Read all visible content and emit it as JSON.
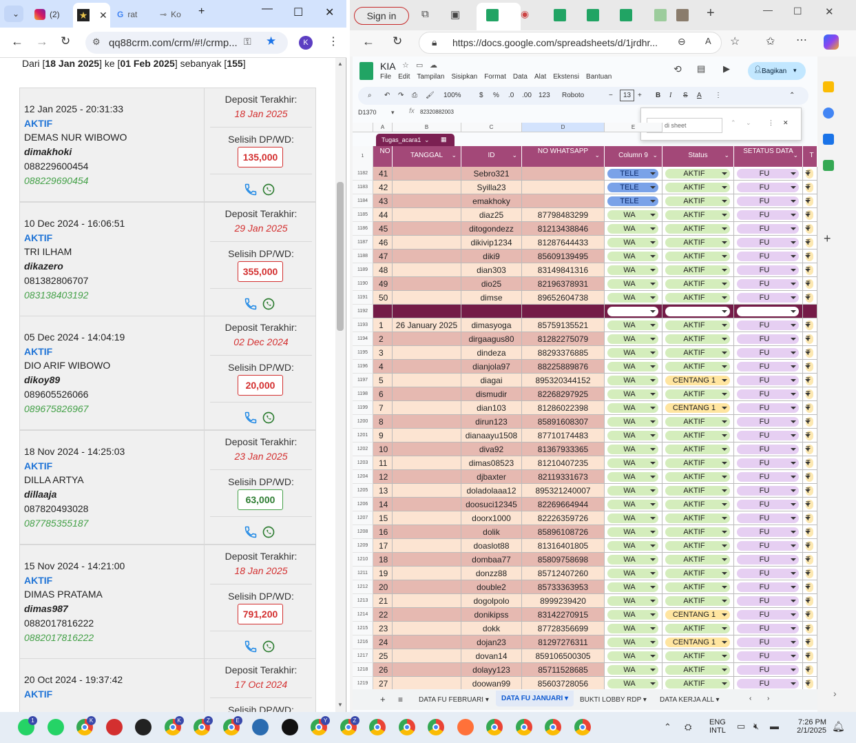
{
  "left_browser": {
    "tabs": [
      {
        "label": "(2)",
        "icon": "instagram-icon"
      },
      {
        "label": "",
        "icon": "star-logo-icon"
      },
      {
        "label": "rat",
        "icon": "google-icon"
      },
      {
        "label": "Ko",
        "icon": "page-icon"
      }
    ],
    "url": "qq88crm.com/crm/#!/crmp...",
    "profile": "K",
    "summary": {
      "prefix": "Dari [",
      "from": "18 Jan 2025",
      "mid1": "] ke [",
      "to": "01 Feb 2025",
      "mid2": "] sebanyak [",
      "count": "155",
      "suffix": "]"
    },
    "labels": {
      "deposit": "Deposit Terakhir:",
      "selisih": "Selisih DP/WD:"
    },
    "cards": [
      {
        "date": "12 Jan 2025 - 20:31:33",
        "status": "AKTIF",
        "name": "DEMAS NUR WIBOWO",
        "user": "dimakhoki",
        "phone": "088229600454",
        "phone2": "088229690454",
        "deposit": "18 Jan 2025",
        "selisih": "135,000",
        "color": "red"
      },
      {
        "date": "10 Dec 2024 - 16:06:51",
        "status": "AKTIF",
        "name": "TRI ILHAM",
        "user": "dikazero",
        "phone": "081382806707",
        "phone2": "083138403192",
        "deposit": "29 Jan 2025",
        "selisih": "355,000",
        "color": "red"
      },
      {
        "date": "05 Dec 2024 - 14:04:19",
        "status": "AKTIF",
        "name": "DIO ARIF WIBOWO",
        "user": "dikoy89",
        "phone": "089605526066",
        "phone2": "089675826967",
        "deposit": "02 Dec 2024",
        "selisih": "20,000",
        "color": "red"
      },
      {
        "date": "18 Nov 2024 - 14:25:03",
        "status": "AKTIF",
        "name": "DILLA ARTYA",
        "user": "dillaaja",
        "phone": "087820493028",
        "phone2": "087785355187",
        "deposit": "23 Jan 2025",
        "selisih": "63,000",
        "color": "green"
      },
      {
        "date": "15 Nov 2024 - 14:21:00",
        "status": "AKTIF",
        "name": "DIMAS PRATAMA",
        "user": "dimas987",
        "phone": "0882017816222",
        "phone2": "0882017816222",
        "deposit": "18 Jan 2025",
        "selisih": "791,200",
        "color": "red"
      },
      {
        "date": "20 Oct 2024 - 19:37:42",
        "status": "AKTIF",
        "name": "",
        "user": "",
        "phone": "",
        "phone2": "",
        "deposit": "17 Oct 2024",
        "selisih": "",
        "color": "red"
      }
    ]
  },
  "right_browser": {
    "signin": "Sign in",
    "url": "https://docs.google.com/spreadsheets/d/1jrdhr...",
    "profile": "K",
    "doc_name": "KIA",
    "menus": [
      "File",
      "Edit",
      "Tampilan",
      "Sisipkan",
      "Format",
      "Data",
      "Alat",
      "Ekstensi",
      "Bantuan"
    ],
    "share": "Bagikan",
    "toolbar": {
      "zoom": "100%",
      "currency": "$",
      "percent": "%",
      "dec1": ".0",
      "dec2": ".00",
      "fmt": "123",
      "font": "Roboto",
      "size": "13"
    },
    "name_box": "D1370",
    "formula": "82320882003",
    "find_placeholder": "Cari di sheet",
    "col_letters": [
      "A",
      "B",
      "C",
      "D",
      "E"
    ],
    "filter_name": "Tugas_acara1",
    "headers": [
      "NO",
      "TANGGAL",
      "ID",
      "NO WHATSAPP",
      "Column 9",
      "Status",
      "SETATUS DATA",
      "T"
    ],
    "rows": [
      {
        "rn": "1182",
        "no": "41",
        "tgl": "",
        "id": "Sebro321",
        "wa": "",
        "col9": "TELE",
        "status": "AKTIF",
        "data": "FU",
        "t": "T"
      },
      {
        "rn": "1183",
        "no": "42",
        "tgl": "",
        "id": "Syilla23",
        "wa": "",
        "col9": "TELE",
        "status": "AKTIF",
        "data": "FU",
        "t": "T"
      },
      {
        "rn": "1184",
        "no": "43",
        "tgl": "",
        "id": "emakhoky",
        "wa": "",
        "col9": "TELE",
        "status": "AKTIF",
        "data": "FU",
        "t": "T"
      },
      {
        "rn": "1185",
        "no": "44",
        "tgl": "",
        "id": "diaz25",
        "wa": "87798483299",
        "col9": "WA",
        "status": "AKTIF",
        "data": "FU",
        "t": "T"
      },
      {
        "rn": "1186",
        "no": "45",
        "tgl": "",
        "id": "ditogondezz",
        "wa": "81213438846",
        "col9": "WA",
        "status": "AKTIF",
        "data": "FU",
        "t": "T"
      },
      {
        "rn": "1187",
        "no": "46",
        "tgl": "",
        "id": "dikivip1234",
        "wa": "81287644433",
        "col9": "WA",
        "status": "AKTIF",
        "data": "FU",
        "t": "T"
      },
      {
        "rn": "1188",
        "no": "47",
        "tgl": "",
        "id": "diki9",
        "wa": "85609139495",
        "col9": "WA",
        "status": "AKTIF",
        "data": "FU",
        "t": "T"
      },
      {
        "rn": "1189",
        "no": "48",
        "tgl": "",
        "id": "dian303",
        "wa": "83149841316",
        "col9": "WA",
        "status": "AKTIF",
        "data": "FU",
        "t": "T"
      },
      {
        "rn": "1190",
        "no": "49",
        "tgl": "",
        "id": "dio25",
        "wa": "82196378931",
        "col9": "WA",
        "status": "AKTIF",
        "data": "FU",
        "t": "T"
      },
      {
        "rn": "1191",
        "no": "50",
        "tgl": "",
        "id": "dimse",
        "wa": "89652604738",
        "col9": "WA",
        "status": "AKTIF",
        "data": "FU",
        "t": "T"
      },
      {
        "rn": "1192",
        "no": "",
        "tgl": "",
        "id": "",
        "wa": "",
        "col9": "",
        "status": "",
        "data": "",
        "t": "",
        "sep": true
      },
      {
        "rn": "1193",
        "no": "1",
        "tgl": "26 January 2025",
        "id": "dimasyoga",
        "wa": "85759135521",
        "col9": "WA",
        "status": "AKTIF",
        "data": "FU",
        "t": "T"
      },
      {
        "rn": "1194",
        "no": "2",
        "tgl": "",
        "id": "dirgaagus80",
        "wa": "81282275079",
        "col9": "WA",
        "status": "AKTIF",
        "data": "FU",
        "t": "T"
      },
      {
        "rn": "1195",
        "no": "3",
        "tgl": "",
        "id": "dindeza",
        "wa": "88293376885",
        "col9": "WA",
        "status": "AKTIF",
        "data": "FU",
        "t": "T"
      },
      {
        "rn": "1196",
        "no": "4",
        "tgl": "",
        "id": "dianjola97",
        "wa": "88225889876",
        "col9": "WA",
        "status": "AKTIF",
        "data": "FU",
        "t": "T"
      },
      {
        "rn": "1197",
        "no": "5",
        "tgl": "",
        "id": "diagai",
        "wa": "895320344152",
        "col9": "WA",
        "status": "CENTANG 1",
        "data": "FU",
        "t": "T"
      },
      {
        "rn": "1198",
        "no": "6",
        "tgl": "",
        "id": "dismudir",
        "wa": "82268297925",
        "col9": "WA",
        "status": "AKTIF",
        "data": "FU",
        "t": "T"
      },
      {
        "rn": "1199",
        "no": "7",
        "tgl": "",
        "id": "dian103",
        "wa": "81286022398",
        "col9": "WA",
        "status": "CENTANG 1",
        "data": "FU",
        "t": "T"
      },
      {
        "rn": "1200",
        "no": "8",
        "tgl": "",
        "id": "dirun123",
        "wa": "85891608307",
        "col9": "WA",
        "status": "AKTIF",
        "data": "FU",
        "t": "T"
      },
      {
        "rn": "1201",
        "no": "9",
        "tgl": "",
        "id": "dianaayu1508",
        "wa": "87710174483",
        "col9": "WA",
        "status": "AKTIF",
        "data": "FU",
        "t": "T"
      },
      {
        "rn": "1202",
        "no": "10",
        "tgl": "",
        "id": "diva92",
        "wa": "81367933365",
        "col9": "WA",
        "status": "AKTIF",
        "data": "FU",
        "t": "T"
      },
      {
        "rn": "1203",
        "no": "11",
        "tgl": "",
        "id": "dimas08523",
        "wa": "81210407235",
        "col9": "WA",
        "status": "AKTIF",
        "data": "FU",
        "t": "T"
      },
      {
        "rn": "1204",
        "no": "12",
        "tgl": "",
        "id": "djbaxter",
        "wa": "82119331673",
        "col9": "WA",
        "status": "AKTIF",
        "data": "FU",
        "t": "T"
      },
      {
        "rn": "1205",
        "no": "13",
        "tgl": "",
        "id": "doladolaaa12",
        "wa": "895321240007",
        "col9": "WA",
        "status": "AKTIF",
        "data": "FU",
        "t": "T"
      },
      {
        "rn": "1206",
        "no": "14",
        "tgl": "",
        "id": "doosuci12345",
        "wa": "82269664944",
        "col9": "WA",
        "status": "AKTIF",
        "data": "FU",
        "t": "T"
      },
      {
        "rn": "1207",
        "no": "15",
        "tgl": "",
        "id": "doorx1000",
        "wa": "82226359726",
        "col9": "WA",
        "status": "AKTIF",
        "data": "FU",
        "t": "T"
      },
      {
        "rn": "1208",
        "no": "16",
        "tgl": "",
        "id": "dolik",
        "wa": "85896108726",
        "col9": "WA",
        "status": "AKTIF",
        "data": "FU",
        "t": "T"
      },
      {
        "rn": "1209",
        "no": "17",
        "tgl": "",
        "id": "doaslot88",
        "wa": "81316401805",
        "col9": "WA",
        "status": "AKTIF",
        "data": "FU",
        "t": "T"
      },
      {
        "rn": "1210",
        "no": "18",
        "tgl": "",
        "id": "dombaa77",
        "wa": "85809758698",
        "col9": "WA",
        "status": "AKTIF",
        "data": "FU",
        "t": "T"
      },
      {
        "rn": "1211",
        "no": "19",
        "tgl": "",
        "id": "donzz88",
        "wa": "85712407260",
        "col9": "WA",
        "status": "AKTIF",
        "data": "FU",
        "t": "T"
      },
      {
        "rn": "1212",
        "no": "20",
        "tgl": "",
        "id": "double2",
        "wa": "85733363953",
        "col9": "WA",
        "status": "AKTIF",
        "data": "FU",
        "t": "T"
      },
      {
        "rn": "1213",
        "no": "21",
        "tgl": "",
        "id": "dogolpolo",
        "wa": "8999239420",
        "col9": "WA",
        "status": "AKTIF",
        "data": "FU",
        "t": "T"
      },
      {
        "rn": "1214",
        "no": "22",
        "tgl": "",
        "id": "donikipss",
        "wa": "83142270915",
        "col9": "WA",
        "status": "CENTANG 1",
        "data": "FU",
        "t": "T"
      },
      {
        "rn": "1215",
        "no": "23",
        "tgl": "",
        "id": "dokk",
        "wa": "87728356699",
        "col9": "WA",
        "status": "AKTIF",
        "data": "FU",
        "t": "T"
      },
      {
        "rn": "1216",
        "no": "24",
        "tgl": "",
        "id": "dojan23",
        "wa": "81297276311",
        "col9": "WA",
        "status": "CENTANG 1",
        "data": "FU",
        "t": "T"
      },
      {
        "rn": "1217",
        "no": "25",
        "tgl": "",
        "id": "dovan14",
        "wa": "859106500305",
        "col9": "WA",
        "status": "AKTIF",
        "data": "FU",
        "t": "T"
      },
      {
        "rn": "1218",
        "no": "26",
        "tgl": "",
        "id": "dolayy123",
        "wa": "85711528685",
        "col9": "WA",
        "status": "AKTIF",
        "data": "FU",
        "t": "T"
      },
      {
        "rn": "1219",
        "no": "27",
        "tgl": "",
        "id": "doowan99",
        "wa": "85603728056",
        "col9": "WA",
        "status": "AKTIF",
        "data": "FU",
        "t": "T"
      }
    ],
    "sheet_tabs": [
      "DATA FU FEBRUARI",
      "DATA FU JANUARI",
      "BUKTI LOBBY RDP",
      "DATA KERJA ALL"
    ],
    "active_sheet": "DATA FU JANUARI"
  },
  "taskbar": {
    "lang1": "ENG",
    "lang2": "INTL",
    "time": "7:26 PM",
    "date": "2/1/2025",
    "badge_notif": "1",
    "apps": [
      {
        "name": "whatsapp-beta-icon",
        "letter": "1"
      },
      {
        "name": "whatsapp-icon"
      },
      {
        "name": "chrome-profile-k-icon",
        "letter": "K"
      },
      {
        "name": "red-app-icon"
      },
      {
        "name": "rave-icon"
      },
      {
        "name": "chrome-profile-k2-icon",
        "letter": "K"
      },
      {
        "name": "chrome-profile-z-icon",
        "letter": "Z"
      },
      {
        "name": "chrome-profile-e-icon",
        "letter": "E"
      },
      {
        "name": "notepad-icon"
      },
      {
        "name": "capcut-icon"
      },
      {
        "name": "chrome-profile-y-icon",
        "letter": "Y"
      },
      {
        "name": "chrome-profile-z2-icon",
        "letter": "Z"
      },
      {
        "name": "chrome-profile-person-icon"
      },
      {
        "name": "chrome-icon"
      },
      {
        "name": "chrome-icon-2"
      },
      {
        "name": "firefox-icon"
      },
      {
        "name": "chrome-icon-3"
      },
      {
        "name": "chrome-profile-icon"
      },
      {
        "name": "chrome-icon-4"
      },
      {
        "name": "chrome-canary-icon"
      }
    ]
  },
  "colors": {
    "header_purple": "#a34878",
    "row_peach": "#fce4d2",
    "row_rose": "#e6b9b1",
    "sep_row": "#741b47",
    "chip_tele": "#7aa2e8",
    "chip_wa": "#d4edbc",
    "chip_aktif": "#d4edbc",
    "chip_centang": "#ffe5a0",
    "chip_fu": "#e6cff2"
  }
}
